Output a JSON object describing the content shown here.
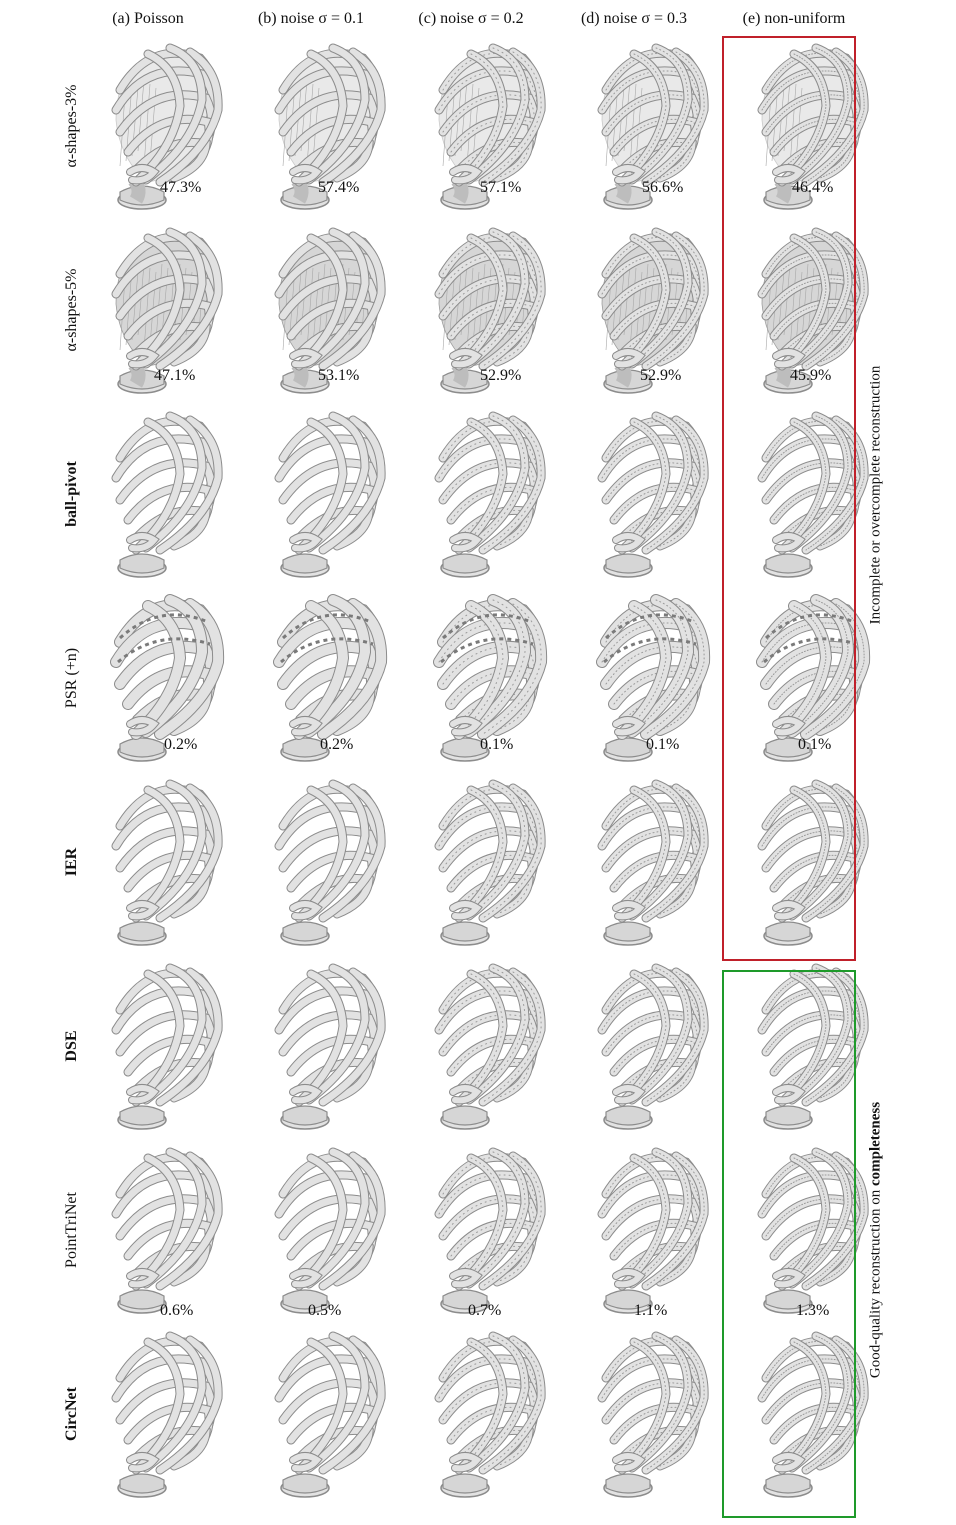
{
  "colors": {
    "incomplete_box": "#c0202a",
    "good_box": "#1e9a2a",
    "mesh_fill": "#e2e2e2",
    "mesh_stroke": "#8c8c8c"
  },
  "columns": [
    "(a) Poisson",
    "(b) noise σ = 0.1",
    "(c) noise σ = 0.2",
    "(d) noise σ = 0.3",
    "(e) non-uniform"
  ],
  "rows": [
    {
      "label": "α-shapes-3%",
      "bold": false,
      "values": [
        "47.3%",
        "57.4%",
        "57.1%",
        "56.6%",
        "46.4%"
      ],
      "render": "sheeted-light"
    },
    {
      "label": "α-shapes-5%",
      "bold": false,
      "values": [
        "47.1%",
        "53.1%",
        "52.9%",
        "52.9%",
        "45.9%"
      ],
      "render": "sheeted-heavy"
    },
    {
      "label": "ball-pivot",
      "bold": true,
      "values": [
        "",
        "",
        "",
        "",
        ""
      ],
      "render": "clean"
    },
    {
      "label": "PSR (+n)",
      "bold": false,
      "values": [
        "0.2%",
        "0.2%",
        "0.1%",
        "0.1%",
        "0.1%"
      ],
      "render": "blobby"
    },
    {
      "label": "IER",
      "bold": true,
      "values": [
        "",
        "",
        "",
        "",
        ""
      ],
      "render": "clean"
    },
    {
      "label": "DSE",
      "bold": true,
      "values": [
        "",
        "",
        "",
        "",
        ""
      ],
      "render": "clean"
    },
    {
      "label": "PointTriNet",
      "bold": false,
      "values": [
        "0.6%",
        "0.5%",
        "0.7%",
        "1.1%",
        "1.3%"
      ],
      "render": "clean"
    },
    {
      "label": "CircNet",
      "bold": true,
      "values": [
        "",
        "",
        "",
        "",
        ""
      ],
      "render": "clean"
    }
  ],
  "side_labels": {
    "incomplete": "Incomplete or overcomplete reconstruction",
    "good_prefix": "Good-quality reconstruction on ",
    "good_bold": "completeness"
  },
  "icons": {
    "mesh": "wire-vase-mesh-icon"
  }
}
